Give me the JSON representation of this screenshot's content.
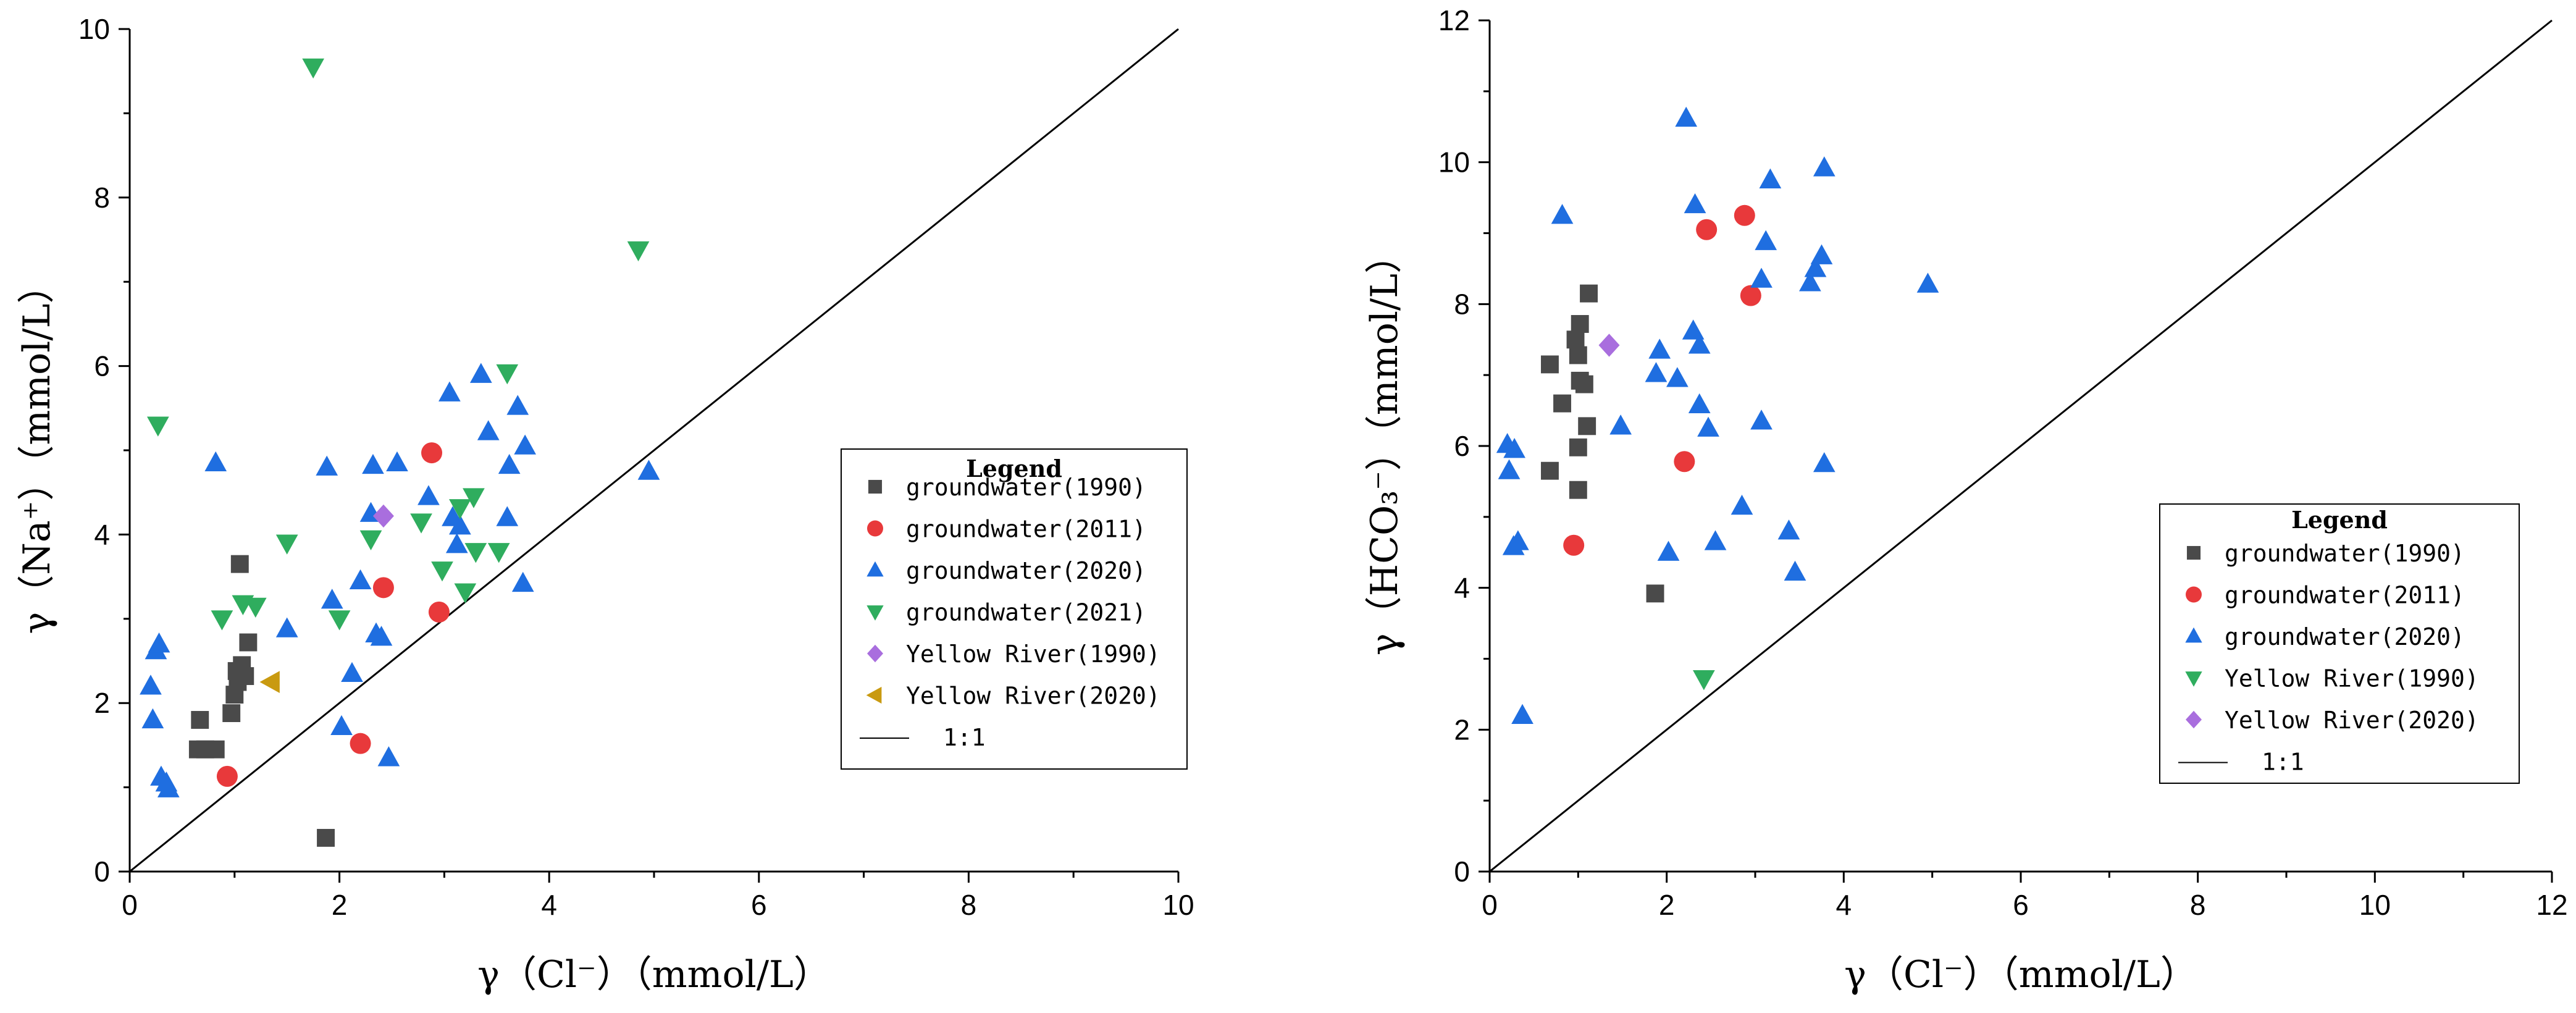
{
  "colors": {
    "groundwater_1990": "#4a4a4a",
    "groundwater_2011": "#e8393b",
    "groundwater_2020": "#1f6ee0",
    "groundwater_2021": "#2fad5e",
    "yellow_river_purple": "#a96ede",
    "yellow_river_gold": "#c99a10"
  },
  "chart_data": [
    {
      "type": "scatter",
      "xlabel": "γ（Cl⁻）（mmol/L）",
      "ylabel": "γ（Na⁺）（mmol/L）",
      "xlim": [
        0,
        10
      ],
      "ylim": [
        0,
        10
      ],
      "xticks": [
        0,
        2,
        4,
        6,
        8,
        10
      ],
      "yticks": [
        0,
        2,
        4,
        6,
        8,
        10
      ],
      "xtick_labels": [
        "0",
        "2",
        "4",
        "6",
        "8",
        "10"
      ],
      "ytick_labels": [
        "0",
        "2",
        "4",
        "6",
        "8",
        "10"
      ],
      "reference_line": {
        "label": "1:1",
        "from": [
          0,
          0
        ],
        "to": [
          10,
          10
        ]
      },
      "legend": {
        "title": "Legend",
        "location": "center-right"
      },
      "series": [
        {
          "name": "groundwater(1990)",
          "marker": "square",
          "color": "#4a4a4a",
          "points": [
            [
              0.65,
              1.45
            ],
            [
              0.72,
              1.45
            ],
            [
              0.82,
              1.45
            ],
            [
              0.67,
              1.8
            ],
            [
              0.97,
              1.88
            ],
            [
              1.0,
              2.1
            ],
            [
              1.03,
              2.25
            ],
            [
              1.02,
              2.38
            ],
            [
              1.07,
              2.45
            ],
            [
              1.1,
              2.32
            ],
            [
              1.13,
              2.72
            ],
            [
              1.05,
              3.65
            ],
            [
              1.87,
              0.4
            ]
          ]
        },
        {
          "name": "groundwater(2011)",
          "marker": "circle",
          "color": "#e8393b",
          "points": [
            [
              0.93,
              1.13
            ],
            [
              2.2,
              1.52
            ],
            [
              2.42,
              3.37
            ],
            [
              2.95,
              3.08
            ],
            [
              2.88,
              4.97
            ]
          ]
        },
        {
          "name": "groundwater(2020)",
          "marker": "triangle-up",
          "color": "#1f6ee0",
          "points": [
            [
              0.2,
              2.2
            ],
            [
              0.22,
              1.8
            ],
            [
              0.25,
              2.62
            ],
            [
              0.28,
              2.7
            ],
            [
              0.3,
              1.12
            ],
            [
              0.35,
              1.05
            ],
            [
              0.37,
              0.98
            ],
            [
              0.82,
              4.85
            ],
            [
              1.5,
              2.88
            ],
            [
              1.88,
              4.8
            ],
            [
              1.93,
              3.22
            ],
            [
              2.02,
              1.72
            ],
            [
              2.12,
              2.35
            ],
            [
              2.2,
              3.45
            ],
            [
              2.3,
              4.25
            ],
            [
              2.32,
              4.82
            ],
            [
              2.35,
              2.82
            ],
            [
              2.4,
              2.78
            ],
            [
              2.47,
              1.35
            ],
            [
              2.55,
              4.85
            ],
            [
              2.85,
              4.45
            ],
            [
              3.05,
              5.68
            ],
            [
              3.08,
              4.2
            ],
            [
              3.12,
              3.88
            ],
            [
              3.15,
              4.1
            ],
            [
              3.35,
              5.9
            ],
            [
              3.42,
              5.22
            ],
            [
              3.6,
              4.2
            ],
            [
              3.62,
              4.82
            ],
            [
              3.7,
              5.52
            ],
            [
              3.75,
              3.42
            ],
            [
              3.77,
              5.05
            ],
            [
              4.95,
              4.75
            ]
          ]
        },
        {
          "name": "groundwater(2021)",
          "marker": "triangle-down",
          "color": "#2fad5e",
          "points": [
            [
              0.27,
              5.3
            ],
            [
              0.88,
              3.0
            ],
            [
              1.08,
              3.18
            ],
            [
              1.2,
              3.15
            ],
            [
              1.5,
              3.9
            ],
            [
              1.75,
              9.55
            ],
            [
              2.0,
              3.0
            ],
            [
              2.3,
              3.95
            ],
            [
              2.78,
              4.15
            ],
            [
              2.98,
              3.58
            ],
            [
              3.15,
              4.32
            ],
            [
              3.2,
              3.32
            ],
            [
              3.28,
              4.45
            ],
            [
              3.3,
              3.8
            ],
            [
              3.52,
              3.8
            ],
            [
              3.6,
              5.92
            ],
            [
              4.85,
              7.38
            ]
          ]
        },
        {
          "name": "Yellow River(1990)",
          "marker": "diamond",
          "color": "#a96ede",
          "points": [
            [
              2.42,
              4.22
            ]
          ]
        },
        {
          "name": "Yellow River(2020)",
          "marker": "triangle-left",
          "color": "#c99a10",
          "points": [
            [
              1.35,
              2.25
            ]
          ]
        }
      ]
    },
    {
      "type": "scatter",
      "xlabel": "γ（Cl⁻）（mmol/L）",
      "ylabel": "γ（HCO₃⁻）（mmol/L）",
      "xlim": [
        0,
        12
      ],
      "ylim": [
        0,
        12
      ],
      "xticks": [
        0,
        2,
        4,
        6,
        8,
        10,
        12
      ],
      "yticks": [
        0,
        2,
        4,
        6,
        8,
        10,
        12
      ],
      "xtick_labels": [
        "0",
        "2",
        "4",
        "6",
        "8",
        "10",
        "12"
      ],
      "ytick_labels": [
        "0",
        "2",
        "4",
        "6",
        "8",
        "10",
        "12"
      ],
      "reference_line": {
        "label": "1:1",
        "from": [
          0,
          0
        ],
        "to": [
          12,
          12
        ]
      },
      "legend": {
        "title": "Legend",
        "location": "lower-right"
      },
      "series": [
        {
          "name": "groundwater(1990)",
          "marker": "square",
          "color": "#4a4a4a",
          "points": [
            [
              0.68,
              7.15
            ],
            [
              0.82,
              6.6
            ],
            [
              0.68,
              5.65
            ],
            [
              0.97,
              7.5
            ],
            [
              1.0,
              7.28
            ],
            [
              1.02,
              7.72
            ],
            [
              1.02,
              6.92
            ],
            [
              1.07,
              6.87
            ],
            [
              1.12,
              8.15
            ],
            [
              1.1,
              6.28
            ],
            [
              1.0,
              5.98
            ],
            [
              1.0,
              5.38
            ],
            [
              1.87,
              3.92
            ]
          ]
        },
        {
          "name": "groundwater(2011)",
          "marker": "circle",
          "color": "#e8393b",
          "points": [
            [
              0.95,
              4.6
            ],
            [
              2.2,
              5.78
            ],
            [
              2.45,
              9.05
            ],
            [
              2.88,
              9.25
            ],
            [
              2.95,
              8.12
            ]
          ]
        },
        {
          "name": "groundwater(2020)",
          "marker": "triangle-up",
          "color": "#1f6ee0",
          "points": [
            [
              0.2,
              6.02
            ],
            [
              0.22,
              5.65
            ],
            [
              0.28,
              5.95
            ],
            [
              0.27,
              4.58
            ],
            [
              0.32,
              4.65
            ],
            [
              0.37,
              2.2
            ],
            [
              0.82,
              9.25
            ],
            [
              1.48,
              6.28
            ],
            [
              1.88,
              7.02
            ],
            [
              1.92,
              7.35
            ],
            [
              2.02,
              4.5
            ],
            [
              2.12,
              6.95
            ],
            [
              2.22,
              10.62
            ],
            [
              2.32,
              9.4
            ],
            [
              2.3,
              7.62
            ],
            [
              2.37,
              7.42
            ],
            [
              2.37,
              6.58
            ],
            [
              2.47,
              6.25
            ],
            [
              2.55,
              4.65
            ],
            [
              2.85,
              5.15
            ],
            [
              3.07,
              6.35
            ],
            [
              3.07,
              8.35
            ],
            [
              3.12,
              8.88
            ],
            [
              3.17,
              9.75
            ],
            [
              3.38,
              4.8
            ],
            [
              3.45,
              4.22
            ],
            [
              3.62,
              8.3
            ],
            [
              3.68,
              8.5
            ],
            [
              3.75,
              8.68
            ],
            [
              3.78,
              9.92
            ],
            [
              3.78,
              5.75
            ],
            [
              4.95,
              8.28
            ]
          ]
        },
        {
          "name": "Yellow River(1990)",
          "marker": "triangle-down",
          "color": "#2fad5e",
          "points": [
            [
              2.42,
              2.72
            ]
          ]
        },
        {
          "name": "Yellow River(2020)",
          "marker": "diamond",
          "color": "#a96ede",
          "points": [
            [
              1.35,
              7.42
            ]
          ]
        }
      ]
    }
  ]
}
